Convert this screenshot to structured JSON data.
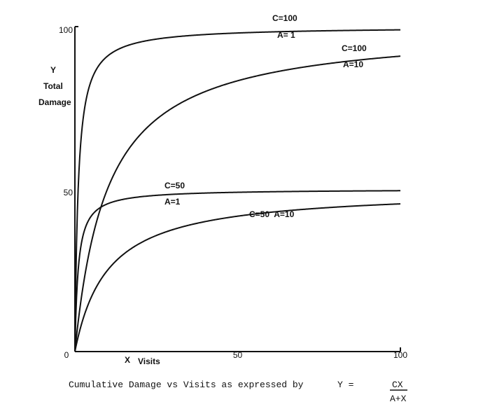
{
  "chart_data": {
    "type": "line",
    "x_label_letter": "X",
    "x_label_text": "Visits",
    "y_label_letter": "Y",
    "y_label_line1": "Total",
    "y_label_line2": "Damage",
    "x_ticks": [
      {
        "value": 0,
        "label": "0"
      },
      {
        "value": 50,
        "label": "50"
      },
      {
        "value": 100,
        "label": "100"
      }
    ],
    "y_ticks": [
      {
        "value": 50,
        "label": "50"
      },
      {
        "value": 100,
        "label": "100"
      }
    ],
    "xlim": [
      0,
      100
    ],
    "ylim": [
      0,
      100
    ],
    "grid": false,
    "series": [
      {
        "C": 100,
        "A": 1,
        "labels": [
          "C=100",
          "A= 1"
        ]
      },
      {
        "C": 100,
        "A": 10,
        "labels": [
          "C=100",
          "A=10"
        ]
      },
      {
        "C": 50,
        "A": 1,
        "labels": [
          "C=50",
          "A=1"
        ]
      },
      {
        "C": 50,
        "A": 10,
        "labels": [
          "C=50  A=10"
        ]
      }
    ],
    "caption_prefix": "Cumulative Damage vs Visits as expressed by",
    "caption_lhs": "Y =",
    "caption_numerator": "CX",
    "caption_denominator": "A+X"
  }
}
